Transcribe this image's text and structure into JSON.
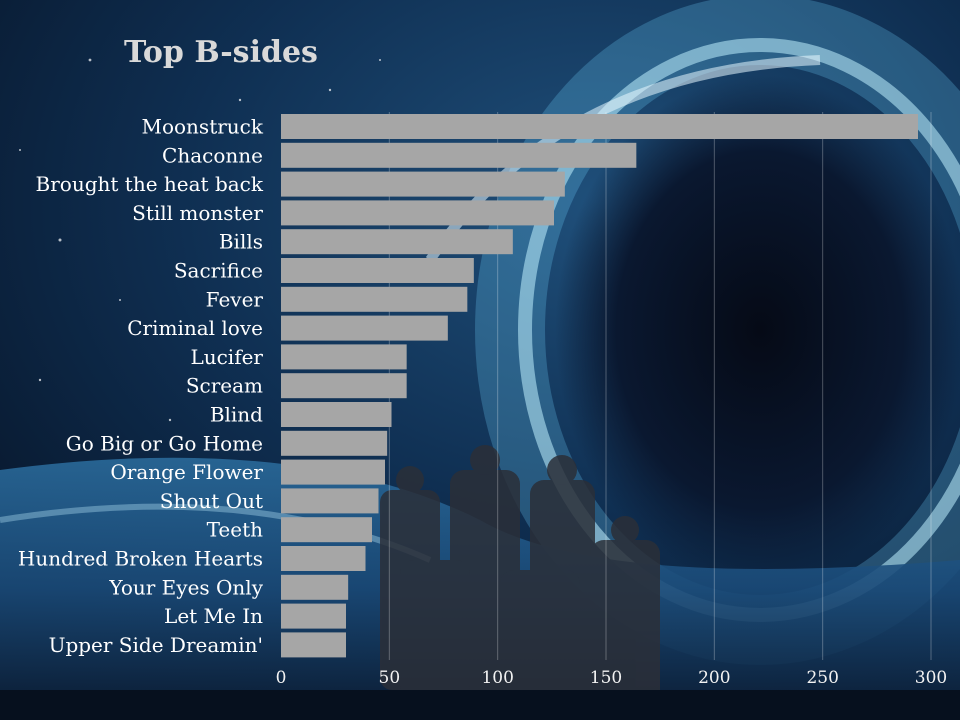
{
  "chart_data": {
    "type": "bar",
    "orientation": "horizontal",
    "title": "Top B-sides",
    "xlabel": "",
    "ylabel": "",
    "categories": [
      "Moonstruck",
      "Chaconne",
      "Brought the heat back",
      "Still monster",
      "Bills",
      "Sacrifice",
      "Fever",
      "Criminal love",
      "Lucifer",
      "Scream",
      "Blind",
      "Go Big or Go Home",
      "Orange Flower",
      "Shout Out",
      "Teeth",
      "Hundred Broken Hearts",
      "Your Eyes Only",
      "Let Me In",
      "Upper Side Dreamin'"
    ],
    "values": [
      294,
      164,
      131,
      126,
      107,
      89,
      86,
      77,
      58,
      58,
      51,
      49,
      48,
      45,
      42,
      39,
      31,
      30,
      30
    ],
    "xlim": [
      0,
      300
    ],
    "xticks": [
      "0",
      "50",
      "100",
      "150",
      "200",
      "250",
      "300"
    ],
    "grid": "vertical",
    "legend": "none",
    "bar_color": "#a6a6a6"
  }
}
